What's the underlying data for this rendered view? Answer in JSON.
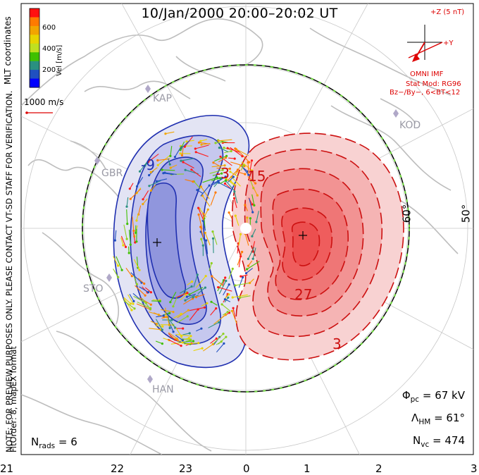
{
  "title": "10/Jan/2000 20:00–20:02 UT",
  "imf": {
    "axis_z": "+Z (5 nT)",
    "axis_y": "+Y",
    "source": "OMNI IMF",
    "stat_mod": "Stat Mod: RG96",
    "condition": "Bz−/By−, 6<BT<12"
  },
  "colorbar": {
    "label": "Vel [m/s]",
    "ticks": [
      "600",
      "400",
      "200"
    ],
    "colors": [
      "#ff1010",
      "#ff7a00",
      "#f2a500",
      "#e8d400",
      "#bfe020",
      "#3fc000",
      "#2a9080",
      "#2050c0",
      "#0000ff"
    ]
  },
  "coords_label": "MLT coordinates",
  "scale_label": "1000 m/s",
  "notice": "NOTE: FOR PREVIEW PURPOSES ONLY. PLEASE CONTACT VT-SD STAFF FOR VERIFICATION.",
  "fit_info": "FitOrder: 8, mapEX format",
  "stations": [
    "KAP",
    "KOD",
    "GBR",
    "STO",
    "HAN"
  ],
  "latitude_labels": [
    "60°",
    "50°"
  ],
  "contour_labels": [
    "-9",
    "-3",
    "15",
    "27",
    "3"
  ],
  "mlt_labels": [
    "21",
    "22",
    "23",
    "0",
    "1",
    "2",
    "3"
  ],
  "stats": {
    "phi_pc": "= 67 kV",
    "lambda_hm": "= 61°",
    "n_vc": "= 474",
    "n_rads": "= 6"
  }
}
